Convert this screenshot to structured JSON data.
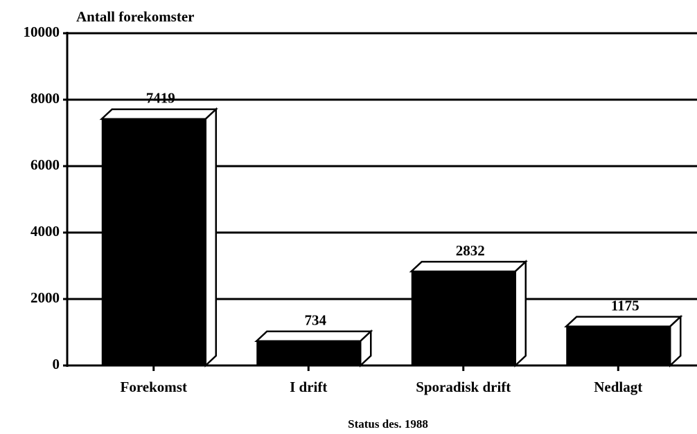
{
  "chart_data": {
    "type": "bar3d",
    "title": "Antall forekomster",
    "x_label": "Status des. 1988",
    "categories": [
      "Forekomst",
      "I drift",
      "Sporadisk drift",
      "Nedlagt"
    ],
    "values": [
      7419,
      734,
      2832,
      1175
    ],
    "color": "#000000",
    "ylim": [
      0,
      10000
    ],
    "yticks": [
      0,
      2000,
      4000,
      6000,
      8000,
      10000
    ],
    "grid": true
  }
}
